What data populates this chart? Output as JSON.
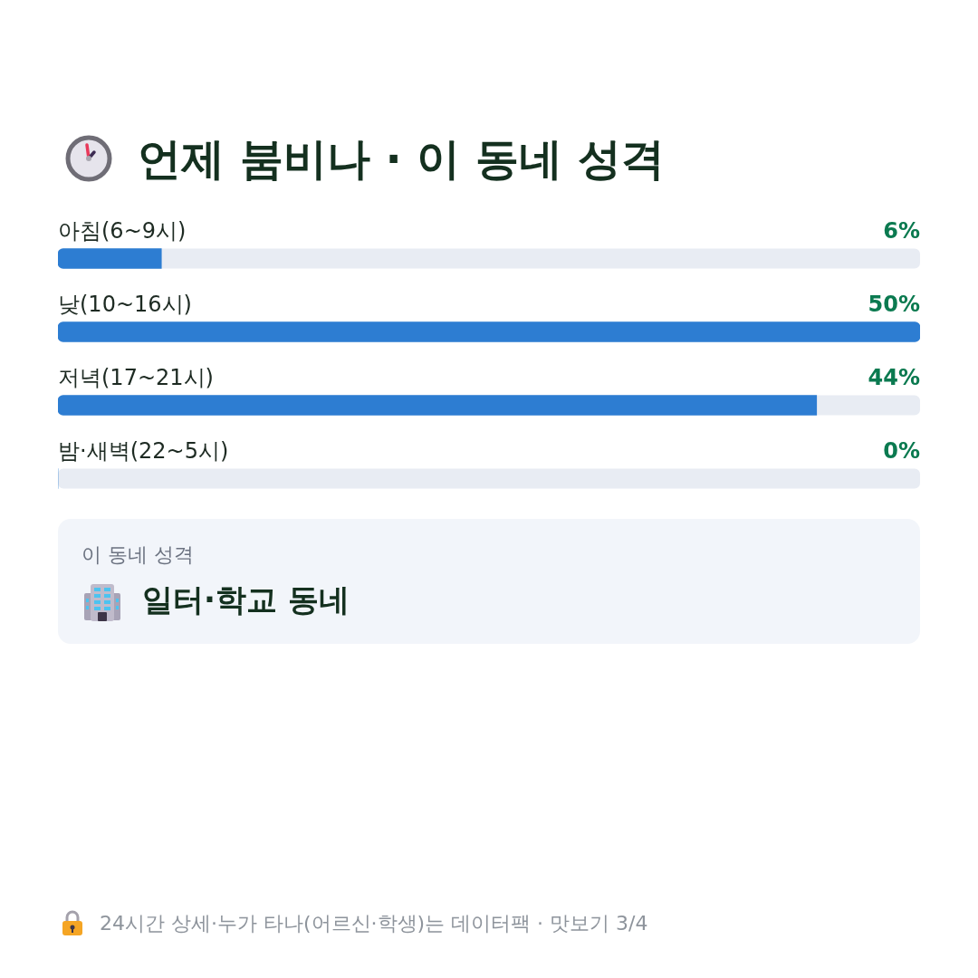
{
  "chart_data": {
    "type": "bar",
    "orientation": "horizontal",
    "title": "언제 붐비나 · 이 동네 성격",
    "categories": [
      "아침(6~9시)",
      "낮(10~16시)",
      "저녁(17~21시)",
      "밤·새벽(22~5시)"
    ],
    "values": [
      6,
      50,
      44,
      0
    ],
    "color": "#2d7dd2",
    "value_labels": [
      "6%",
      "50%",
      "44%",
      "0%"
    ],
    "tick_labels": "y",
    "annotations": [
      "이 동네 성격",
      "일터·학교 동네",
      "24시간 상세·누가 타나(어르신·학생)는 데이터팩 · 맛보기 3/4"
    ]
  }
}
